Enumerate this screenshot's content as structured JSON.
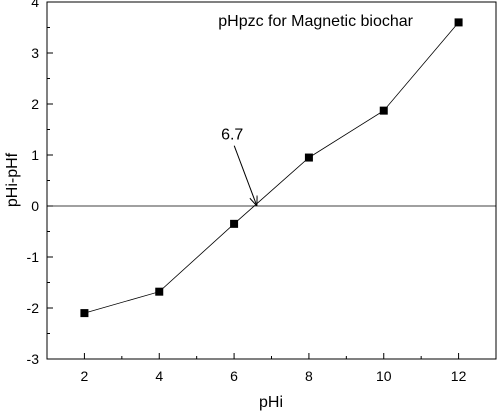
{
  "chart_data": {
    "type": "scatter",
    "title": "pHpzc for Magnetic biochar",
    "xlabel": "pHi",
    "ylabel": "pHi-pHf",
    "xlim": [
      1,
      13
    ],
    "ylim": [
      -3,
      4
    ],
    "xticks": [
      2,
      4,
      6,
      8,
      10,
      12
    ],
    "yticks": [
      -3,
      -2,
      -1,
      0,
      1,
      2,
      3,
      4
    ],
    "series": [
      {
        "x": [
          2,
          4,
          6,
          8,
          10,
          12
        ],
        "y": [
          -2.1,
          -1.68,
          -0.35,
          0.95,
          1.87,
          3.6
        ],
        "marker": "square",
        "line": true,
        "color": "#000000"
      }
    ],
    "reference_line": {
      "y": 0
    },
    "annotation": {
      "text": "6.7",
      "point": {
        "x": 6.6,
        "y": 0
      },
      "text_at": {
        "x": 5.95,
        "y": 1.3
      }
    },
    "grid": false
  }
}
